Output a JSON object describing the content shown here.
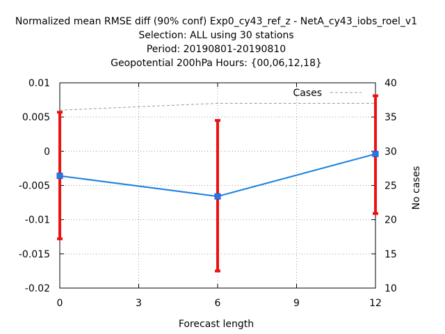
{
  "chart_data": {
    "type": "line",
    "title_lines": [
      "Normalized mean RMSE diff (90% conf) Exp0_cy43_ref_z - NetA_cy43_iobs_roel_v1",
      "Selection: ALL using    30 stations",
      "Period: 20190801-20190810",
      "Geopotential 200hPa   Hours: {00,06,12,18}"
    ],
    "xlabel": "Forecast length",
    "ylabel": "",
    "y2label": "No cases",
    "x_ticks": [
      "0",
      "3",
      "6",
      "9",
      "12"
    ],
    "y_ticks": [
      "0.01",
      "0.005",
      "0",
      "-0.005",
      "-0.01",
      "-0.015",
      "-0.02"
    ],
    "y2_ticks": [
      "40",
      "35",
      "30",
      "25",
      "20",
      "15",
      "10"
    ],
    "xlim": [
      0,
      12
    ],
    "ylim": [
      -0.02,
      0.01
    ],
    "y2lim": [
      10,
      40
    ],
    "grid": true,
    "legend": {
      "position": "top-right",
      "entries": [
        "Cases"
      ]
    },
    "series": [
      {
        "kind": "line-errorbar",
        "color": "#1c7fe0",
        "errorbar_color": "#ee1111",
        "x": [
          0,
          6,
          12
        ],
        "y": [
          -0.0036,
          -0.0066,
          -0.0004
        ],
        "err_low": [
          -0.0128,
          -0.0175,
          -0.0091
        ],
        "err_high": [
          0.0057,
          0.0045,
          0.0081
        ]
      },
      {
        "name": "Cases",
        "kind": "line",
        "axis": "y2",
        "color": "#999999",
        "dash": true,
        "x": [
          0,
          6,
          12
        ],
        "y": [
          36,
          37,
          37
        ]
      }
    ]
  }
}
